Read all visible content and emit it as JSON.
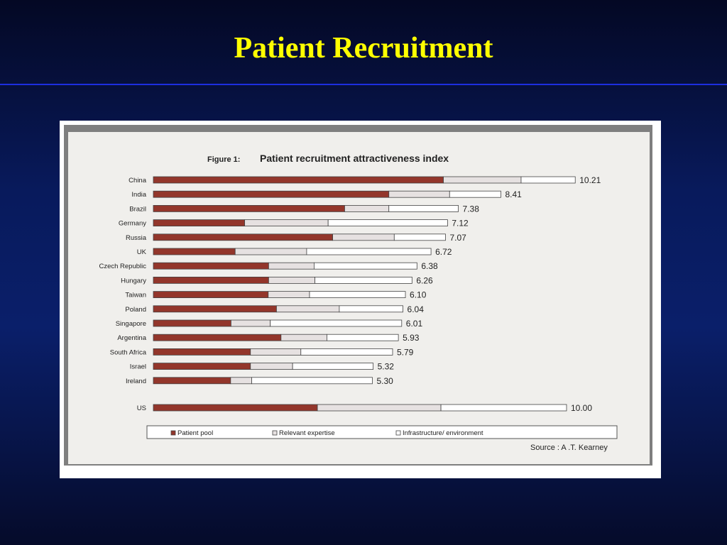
{
  "slide": {
    "title": "Patient Recruitment"
  },
  "figure": {
    "label": "Figure 1:",
    "title": "Patient  recruitment  attractiveness index",
    "source": "Source : A .T. Kearney"
  },
  "colors": {
    "background": "#081a5c",
    "title": "#ffff00",
    "rule": "#1d2ee0",
    "patient_pool": "#93362b",
    "relevant_expertise": "#e6e1e1",
    "infrastructure": "#ffffff"
  },
  "chart_data": {
    "type": "bar",
    "orientation": "horizontal",
    "stacked": true,
    "title": "Patient  recruitment  attractiveness index",
    "categories": [
      "China",
      "India",
      "Brazil",
      "Germany",
      "Russia",
      "UK",
      "Czech Republic",
      "Hungary",
      "Taiwan",
      "Poland",
      "Singapore",
      "Argentina",
      "South Africa",
      "Israel",
      "Ireland",
      "US"
    ],
    "series": [
      {
        "name": "Patient  pool",
        "values": [
          7.02,
          5.7,
          4.63,
          2.21,
          4.34,
          1.98,
          2.79,
          2.79,
          2.78,
          2.98,
          1.88,
          3.09,
          2.35,
          2.35,
          1.87,
          3.97
        ]
      },
      {
        "name": "Relevant  expertise",
        "values": [
          1.88,
          1.47,
          1.07,
          2.02,
          1.49,
          1.73,
          1.1,
          1.12,
          1.0,
          1.52,
          0.95,
          1.11,
          1.22,
          1.02,
          0.51,
          2.99
        ]
      },
      {
        "name": "Infrastructure/ environment",
        "values": [
          1.31,
          1.24,
          1.68,
          2.89,
          1.24,
          3.01,
          2.49,
          2.35,
          2.32,
          1.54,
          3.18,
          1.73,
          2.22,
          1.95,
          2.92,
          3.04
        ]
      }
    ],
    "totals": [
      "10.21",
      "8.41",
      "7.38",
      "7.12",
      "7.07",
      "6.72",
      "6.38",
      "6.26",
      "6.10",
      "6.04",
      "6.01",
      "5.93",
      "5.79",
      "5.32",
      "5.30",
      "10.00"
    ],
    "legend": {
      "placement": "bottom",
      "items": [
        "Patient  pool",
        "Relevant  expertise",
        "Infrastructure/ environment"
      ]
    }
  }
}
